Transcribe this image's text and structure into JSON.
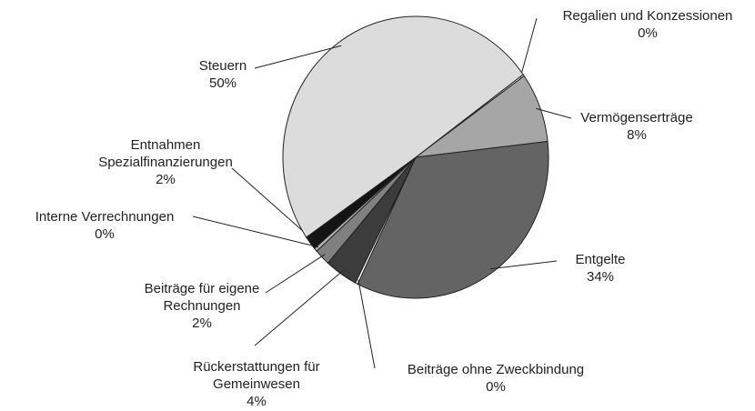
{
  "chart_data": {
    "type": "pie",
    "categories": [
      "Regalien und Konzessionen",
      "Vermögenserträge",
      "Entgelte",
      "Beiträge ohne Zweckbindung",
      "Rückerstattungen für Gemeinwesen",
      "Beiträge für eigene Rechnungen",
      "Interne Verrechnungen",
      "Entnahmen Spezialfinanzierungen",
      "Steuern"
    ],
    "values": [
      0.2,
      8,
      34,
      0.3,
      4,
      1.9,
      0.4,
      1.6,
      49.6
    ],
    "value_labels": [
      "0%",
      "8%",
      "34%",
      "0%",
      "4%",
      "2%",
      "0%",
      "2%",
      "50%"
    ],
    "colors": [
      "#ffffff",
      "#a6a6a6",
      "#646464",
      "#ffffff",
      "#3c3c3c",
      "#808080",
      "#b4b4b4",
      "#141414",
      "#dcdcdc"
    ]
  }
}
